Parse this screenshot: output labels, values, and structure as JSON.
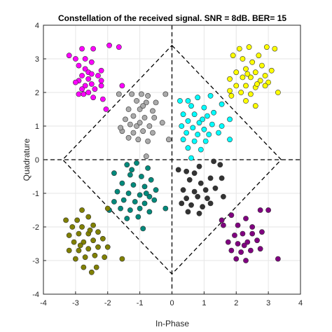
{
  "chart_data": {
    "type": "scatter",
    "title": "Constellation of the received signal. SNR = 8dB. BER= 15",
    "xlabel": "In-Phase",
    "ylabel": "Quadrature",
    "xlim": [
      -4,
      4
    ],
    "ylim": [
      -4,
      4
    ],
    "xticks": [
      "-4",
      "-3",
      "-2",
      "-1",
      "0",
      "1",
      "2",
      "3",
      "4"
    ],
    "yticks": [
      "-4",
      "-3",
      "-2",
      "-1",
      "0",
      "1",
      "2",
      "3",
      "4"
    ],
    "grid": true,
    "annotations": {
      "diamond": [
        [
          0,
          3.4
        ],
        [
          3.4,
          0
        ],
        [
          0,
          -3.4
        ],
        [
          -3.4,
          0
        ]
      ],
      "hline_y": 0,
      "vline_x": 0
    },
    "series": [
      {
        "color": "#ff00ff",
        "points": [
          [
            -3.2,
            3.1
          ],
          [
            -3.0,
            3.0
          ],
          [
            -2.7,
            3.0
          ],
          [
            -2.5,
            2.9
          ],
          [
            -2.9,
            2.8
          ],
          [
            -2.7,
            2.7
          ],
          [
            -2.6,
            2.6
          ],
          [
            -2.2,
            2.65
          ],
          [
            -2.3,
            2.5
          ],
          [
            -2.8,
            2.5
          ],
          [
            -2.6,
            2.4
          ],
          [
            -2.9,
            2.35
          ],
          [
            -3.0,
            2.3
          ],
          [
            -2.5,
            2.25
          ],
          [
            -2.7,
            2.2
          ],
          [
            -2.2,
            2.2
          ],
          [
            -2.4,
            2.1
          ],
          [
            -2.8,
            2.1
          ],
          [
            -2.6,
            2.0
          ],
          [
            -2.9,
            1.95
          ],
          [
            -2.45,
            1.85
          ],
          [
            -2.15,
            1.8
          ],
          [
            -2.8,
            3.3
          ],
          [
            -2.45,
            3.3
          ],
          [
            -1.95,
            3.4
          ],
          [
            -1.65,
            3.35
          ],
          [
            -2.75,
            1.95
          ],
          [
            -2.05,
            1.5
          ],
          [
            -1.55,
            2.2
          ],
          [
            -2.5,
            2.55
          ],
          [
            -2.2,
            2.35
          ]
        ]
      },
      {
        "color": "#ffff00",
        "points": [
          [
            1.9,
            3.1
          ],
          [
            2.1,
            3.3
          ],
          [
            2.4,
            3.35
          ],
          [
            2.7,
            3.1
          ],
          [
            2.2,
            3.0
          ],
          [
            2.5,
            2.9
          ],
          [
            2.8,
            2.8
          ],
          [
            3.1,
            2.65
          ],
          [
            2.3,
            2.7
          ],
          [
            2.0,
            2.6
          ],
          [
            2.6,
            2.6
          ],
          [
            2.9,
            2.5
          ],
          [
            1.8,
            2.4
          ],
          [
            2.2,
            2.45
          ],
          [
            2.45,
            2.45
          ],
          [
            2.75,
            2.35
          ],
          [
            3.0,
            2.3
          ],
          [
            2.0,
            2.2
          ],
          [
            2.3,
            2.2
          ],
          [
            2.6,
            2.15
          ],
          [
            2.9,
            2.2
          ],
          [
            1.8,
            2.05
          ],
          [
            2.15,
            2.0
          ],
          [
            2.45,
            1.95
          ],
          [
            1.85,
            1.9
          ],
          [
            2.3,
            1.75
          ],
          [
            2.6,
            1.6
          ],
          [
            3.3,
            2.0
          ],
          [
            2.95,
            3.35
          ],
          [
            3.2,
            3.3
          ],
          [
            2.35,
            2.55
          ],
          [
            2.65,
            2.25
          ]
        ]
      },
      {
        "color": "#aaaaaa",
        "points": [
          [
            -1.65,
            1.95
          ],
          [
            -1.25,
            1.95
          ],
          [
            -0.95,
            1.95
          ],
          [
            -0.75,
            1.9
          ],
          [
            -0.2,
            1.95
          ],
          [
            -1.1,
            1.75
          ],
          [
            -0.8,
            1.7
          ],
          [
            -0.5,
            1.7
          ],
          [
            -1.35,
            1.5
          ],
          [
            -1.0,
            1.5
          ],
          [
            -0.6,
            1.45
          ],
          [
            -1.2,
            1.3
          ],
          [
            -0.85,
            1.25
          ],
          [
            -0.55,
            1.25
          ],
          [
            -1.45,
            1.2
          ],
          [
            -1.3,
            1.05
          ],
          [
            -1.1,
            1.0
          ],
          [
            -0.7,
            1.0
          ],
          [
            -0.3,
            1.1
          ],
          [
            -1.55,
            0.85
          ],
          [
            -1.2,
            0.8
          ],
          [
            -0.9,
            0.85
          ],
          [
            -0.6,
            0.8
          ],
          [
            -1.35,
            0.65
          ],
          [
            -1.05,
            0.6
          ],
          [
            -0.75,
            0.55
          ],
          [
            -1.6,
            0.95
          ],
          [
            -0.1,
            0.6
          ],
          [
            -0.8,
            0.1
          ],
          [
            -1.0,
            1.1
          ],
          [
            -0.9,
            1.6
          ]
        ]
      },
      {
        "color": "#00ffff",
        "points": [
          [
            0.25,
            1.75
          ],
          [
            0.5,
            1.75
          ],
          [
            0.8,
            1.85
          ],
          [
            1.2,
            1.9
          ],
          [
            1.55,
            1.65
          ],
          [
            0.6,
            1.6
          ],
          [
            1.0,
            1.55
          ],
          [
            1.3,
            1.4
          ],
          [
            0.35,
            1.35
          ],
          [
            0.7,
            1.35
          ],
          [
            1.1,
            1.3
          ],
          [
            0.5,
            1.15
          ],
          [
            0.85,
            1.1
          ],
          [
            1.25,
            1.05
          ],
          [
            1.55,
            1.0
          ],
          [
            0.3,
            1.0
          ],
          [
            0.65,
            0.95
          ],
          [
            1.0,
            0.9
          ],
          [
            0.45,
            0.8
          ],
          [
            0.8,
            0.75
          ],
          [
            1.15,
            0.75
          ],
          [
            1.45,
            0.8
          ],
          [
            0.35,
            0.6
          ],
          [
            0.7,
            0.55
          ],
          [
            1.05,
            0.55
          ],
          [
            0.5,
            0.35
          ],
          [
            0.9,
            0.3
          ],
          [
            1.8,
            0.6
          ],
          [
            0.6,
            0.05
          ],
          [
            1.8,
            1.2
          ],
          [
            0.95,
            1.2
          ]
        ]
      },
      {
        "color": "#00897b",
        "points": [
          [
            -1.4,
            -0.15
          ],
          [
            -1.1,
            -0.1
          ],
          [
            -0.75,
            -0.25
          ],
          [
            -0.65,
            -0.6
          ],
          [
            -1.8,
            -0.4
          ],
          [
            -1.3,
            -0.45
          ],
          [
            -0.95,
            -0.5
          ],
          [
            -1.55,
            -0.7
          ],
          [
            -1.2,
            -0.75
          ],
          [
            -0.85,
            -0.8
          ],
          [
            -0.5,
            -0.9
          ],
          [
            -1.7,
            -0.95
          ],
          [
            -1.35,
            -1.0
          ],
          [
            -1.0,
            -1.05
          ],
          [
            -0.7,
            -1.1
          ],
          [
            -1.8,
            -1.25
          ],
          [
            -1.5,
            -1.2
          ],
          [
            -1.15,
            -1.25
          ],
          [
            -0.85,
            -1.3
          ],
          [
            -0.55,
            -1.2
          ],
          [
            -1.6,
            -1.45
          ],
          [
            -1.3,
            -1.5
          ],
          [
            -1.0,
            -1.45
          ],
          [
            -0.7,
            -1.55
          ],
          [
            -1.4,
            -1.75
          ],
          [
            -0.2,
            -1.45
          ],
          [
            -0.9,
            -2.05
          ],
          [
            -1.95,
            -1.5
          ],
          [
            -1.25,
            -0.3
          ],
          [
            -0.8,
            -1.0
          ],
          [
            -1.05,
            -1.7
          ]
        ]
      },
      {
        "color": "#333333",
        "points": [
          [
            0.2,
            -0.3
          ],
          [
            0.45,
            -0.35
          ],
          [
            0.85,
            -0.2
          ],
          [
            1.3,
            -0.05
          ],
          [
            1.5,
            -0.15
          ],
          [
            0.55,
            -0.6
          ],
          [
            0.9,
            -0.7
          ],
          [
            1.2,
            -0.55
          ],
          [
            0.35,
            -0.9
          ],
          [
            0.7,
            -0.95
          ],
          [
            1.05,
            -0.9
          ],
          [
            1.35,
            -0.85
          ],
          [
            0.45,
            -1.15
          ],
          [
            0.8,
            -1.1
          ],
          [
            1.1,
            -1.15
          ],
          [
            0.3,
            -1.3
          ],
          [
            0.6,
            -1.35
          ],
          [
            0.95,
            -1.4
          ],
          [
            1.2,
            -1.3
          ],
          [
            0.5,
            -1.55
          ],
          [
            0.85,
            -1.6
          ],
          [
            1.55,
            -0.55
          ],
          [
            1.6,
            -1.1
          ],
          [
            0.7,
            -0.4
          ]
        ]
      },
      {
        "color": "#808000",
        "points": [
          [
            -2.8,
            -1.5
          ],
          [
            -3.3,
            -1.8
          ],
          [
            -2.95,
            -1.8
          ],
          [
            -2.6,
            -1.7
          ],
          [
            -3.1,
            -2.0
          ],
          [
            -2.8,
            -2.0
          ],
          [
            -2.45,
            -1.95
          ],
          [
            -3.2,
            -2.25
          ],
          [
            -2.9,
            -2.2
          ],
          [
            -2.6,
            -2.2
          ],
          [
            -2.3,
            -2.15
          ],
          [
            -3.05,
            -2.45
          ],
          [
            -2.75,
            -2.45
          ],
          [
            -2.45,
            -2.4
          ],
          [
            -2.15,
            -2.35
          ],
          [
            -3.2,
            -2.7
          ],
          [
            -2.9,
            -2.7
          ],
          [
            -2.6,
            -2.65
          ],
          [
            -2.3,
            -2.6
          ],
          [
            -2.0,
            -2.6
          ],
          [
            -3.0,
            -2.95
          ],
          [
            -2.7,
            -2.9
          ],
          [
            -2.4,
            -2.85
          ],
          [
            -2.1,
            -2.9
          ],
          [
            -2.75,
            -3.2
          ],
          [
            -2.5,
            -3.35
          ],
          [
            -2.35,
            -3.2
          ],
          [
            -1.55,
            -2.95
          ],
          [
            -2.0,
            -1.45
          ],
          [
            -2.85,
            -2.55
          ],
          [
            -2.55,
            -2.1
          ]
        ]
      },
      {
        "color": "#800080",
        "points": [
          [
            1.55,
            -1.8
          ],
          [
            1.85,
            -1.65
          ],
          [
            2.05,
            -1.95
          ],
          [
            2.3,
            -1.75
          ],
          [
            2.75,
            -1.5
          ],
          [
            3.0,
            -1.5
          ],
          [
            1.95,
            -2.25
          ],
          [
            2.2,
            -2.2
          ],
          [
            2.5,
            -2.2
          ],
          [
            2.8,
            -2.15
          ],
          [
            1.75,
            -2.45
          ],
          [
            2.05,
            -2.5
          ],
          [
            2.35,
            -2.45
          ],
          [
            2.65,
            -2.4
          ],
          [
            1.85,
            -2.7
          ],
          [
            2.15,
            -2.75
          ],
          [
            2.45,
            -2.7
          ],
          [
            2.75,
            -2.65
          ],
          [
            2.0,
            -2.95
          ],
          [
            2.3,
            -3.0
          ],
          [
            3.3,
            -2.95
          ],
          [
            1.6,
            -1.95
          ],
          [
            2.5,
            -2.0
          ],
          [
            2.25,
            -2.55
          ]
        ]
      }
    ]
  }
}
